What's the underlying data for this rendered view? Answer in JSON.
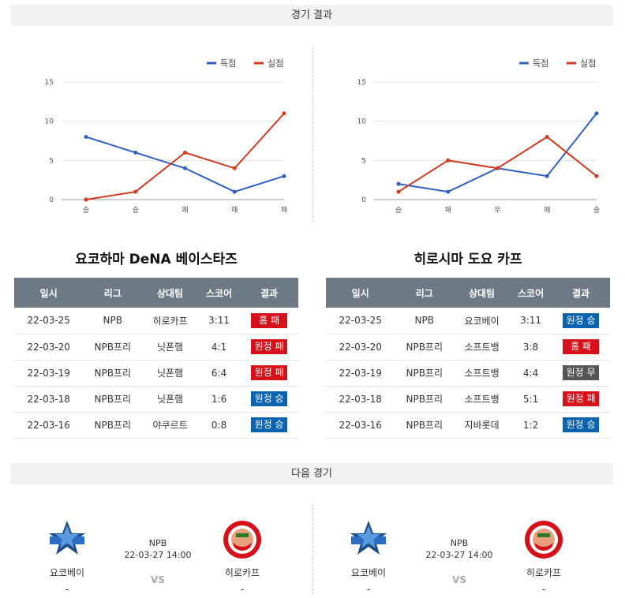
{
  "sections": {
    "results_title": "경기 결과",
    "next_title": "다음 경기"
  },
  "colors": {
    "scored": "#2f5fbf",
    "conceded": "#d23a1f"
  },
  "chart_data": [
    {
      "type": "line",
      "categories": [
        "승",
        "승",
        "패",
        "패",
        "패"
      ],
      "series": [
        {
          "name": "득점",
          "values": [
            8,
            6,
            4,
            1,
            3
          ]
        },
        {
          "name": "실점",
          "values": [
            0,
            1,
            6,
            4,
            11
          ]
        }
      ],
      "ylim": [
        0,
        15
      ],
      "yticks": [
        0,
        5,
        10,
        15
      ],
      "grid": true,
      "legend": "top-right"
    },
    {
      "type": "line",
      "categories": [
        "승",
        "패",
        "무",
        "패",
        "승"
      ],
      "series": [
        {
          "name": "득점",
          "values": [
            2,
            1,
            4,
            3,
            11
          ]
        },
        {
          "name": "실점",
          "values": [
            1,
            5,
            4,
            8,
            3
          ]
        }
      ],
      "ylim": [
        0,
        15
      ],
      "yticks": [
        0,
        5,
        10,
        15
      ],
      "grid": true,
      "legend": "top-right"
    }
  ],
  "teams": [
    {
      "title": "요코하마 DeNA 베이스타즈",
      "headers": [
        "일시",
        "리그",
        "상대팀",
        "스코어",
        "결과"
      ],
      "rows": [
        {
          "date": "22-03-25",
          "league": "NPB",
          "opponent": "히로카프",
          "score": "3:11",
          "result": "홈 패",
          "kind": "loss"
        },
        {
          "date": "22-03-20",
          "league": "NPB프리",
          "opponent": "닛폰햄",
          "score": "4:1",
          "result": "원정 패",
          "kind": "loss"
        },
        {
          "date": "22-03-19",
          "league": "NPB프리",
          "opponent": "닛폰햄",
          "score": "6:4",
          "result": "원정 패",
          "kind": "loss"
        },
        {
          "date": "22-03-18",
          "league": "NPB프리",
          "opponent": "닛폰햄",
          "score": "1:6",
          "result": "원정 승",
          "kind": "win"
        },
        {
          "date": "22-03-16",
          "league": "NPB프리",
          "opponent": "야쿠르트",
          "score": "0:8",
          "result": "원정 승",
          "kind": "win"
        }
      ]
    },
    {
      "title": "히로시마 도요 카프",
      "headers": [
        "일시",
        "리그",
        "상대팀",
        "스코어",
        "결과"
      ],
      "rows": [
        {
          "date": "22-03-25",
          "league": "NPB",
          "opponent": "요코베이",
          "score": "3:11",
          "result": "원정 승",
          "kind": "win"
        },
        {
          "date": "22-03-20",
          "league": "NPB프리",
          "opponent": "소프트뱅",
          "score": "3:8",
          "result": "홈 패",
          "kind": "loss"
        },
        {
          "date": "22-03-19",
          "league": "NPB프리",
          "opponent": "소프트뱅",
          "score": "4:4",
          "result": "원정 무",
          "kind": "draw"
        },
        {
          "date": "22-03-18",
          "league": "NPB프리",
          "opponent": "소프트뱅",
          "score": "5:1",
          "result": "원정 패",
          "kind": "loss"
        },
        {
          "date": "22-03-16",
          "league": "NPB프리",
          "opponent": "지바롯데",
          "score": "1:2",
          "result": "원정 승",
          "kind": "win"
        }
      ]
    }
  ],
  "next_games": [
    {
      "home": "요코베이",
      "home_score": "-",
      "away": "히로카프",
      "away_score": "-",
      "league": "NPB",
      "datetime": "22-03-27 14:00",
      "vs": "VS"
    },
    {
      "home": "요코베이",
      "home_score": "-",
      "away": "히로카프",
      "away_score": "-",
      "league": "NPB",
      "datetime": "22-03-27 14:00",
      "vs": "VS"
    }
  ]
}
